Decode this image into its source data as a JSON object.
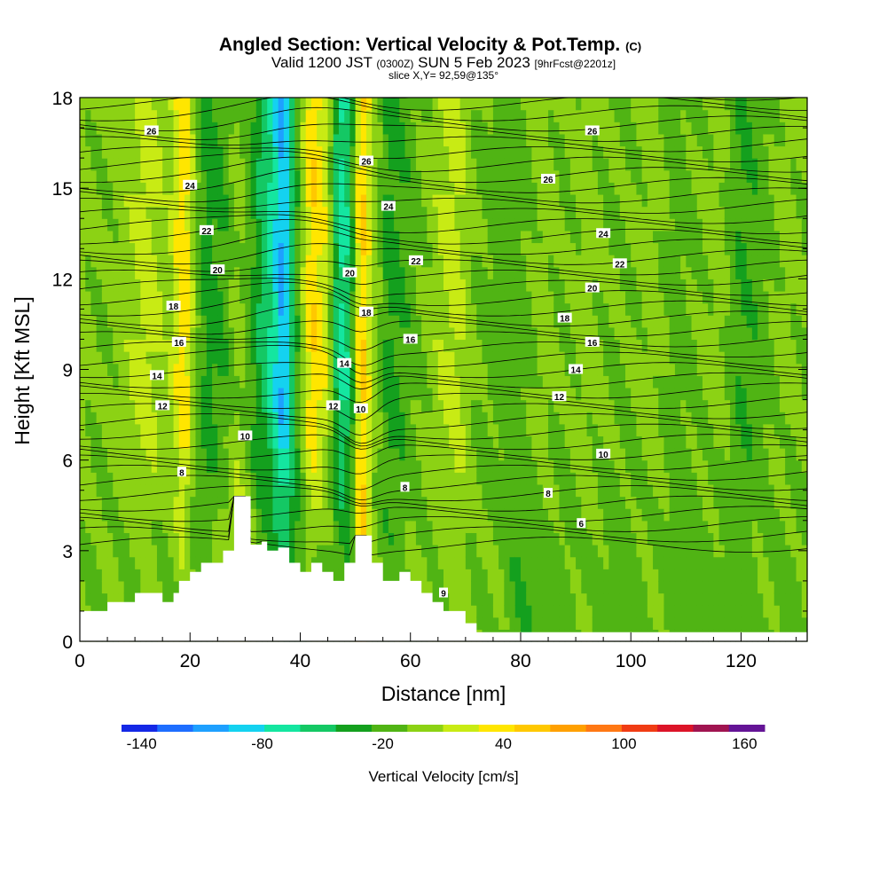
{
  "chart_data": {
    "type": "heatmap",
    "title": "Angled Section: Vertical Velocity & Pot.Temp.",
    "title_mark": "(C)",
    "subtitle": {
      "valid": "Valid 1200 JST",
      "utc": "(0300Z)",
      "date": "SUN 5 Feb 2023",
      "forecast": "[9hrFcst@2201z]"
    },
    "slice": "slice X,Y= 92,59@135°",
    "xlabel": "Distance [nm]",
    "ylabel": "Height [Kft MSL]",
    "xlim": [
      0,
      132
    ],
    "ylim": [
      0,
      18
    ],
    "x_ticks": [
      0,
      20,
      40,
      60,
      80,
      100,
      120
    ],
    "y_ticks": [
      0,
      3,
      6,
      9,
      12,
      15,
      18
    ],
    "colorbar": {
      "label": "Vertical Velocity [cm/s]",
      "min": -150,
      "max": 170,
      "step": 20,
      "tick_values": [
        -140,
        -80,
        -20,
        40,
        100,
        160
      ],
      "tick_labels": [
        "-140",
        "-80",
        "-20",
        "40",
        "100",
        "160"
      ],
      "colors": [
        "#1428e6",
        "#1e6eff",
        "#1ea0ff",
        "#14d2f0",
        "#14e6a0",
        "#14c864",
        "#14a01e",
        "#50b414",
        "#8cd214",
        "#c8eb14",
        "#ffe600",
        "#ffc800",
        "#ffa000",
        "#ff7814",
        "#f03c14",
        "#dc1428",
        "#a01450",
        "#641496"
      ]
    },
    "terrain": [
      [
        0,
        1
      ],
      [
        5,
        1
      ],
      [
        5,
        1.3
      ],
      [
        10,
        1.3
      ],
      [
        10,
        1.6
      ],
      [
        15,
        1.6
      ],
      [
        15,
        1.3
      ],
      [
        17,
        1.3
      ],
      [
        17,
        1.6
      ],
      [
        18,
        1.6
      ],
      [
        18,
        2
      ],
      [
        20,
        2
      ],
      [
        20,
        2.3
      ],
      [
        22,
        2.3
      ],
      [
        22,
        2.6
      ],
      [
        26,
        2.6
      ],
      [
        26,
        3
      ],
      [
        28,
        3
      ],
      [
        28,
        4.8
      ],
      [
        31,
        4.8
      ],
      [
        31,
        3.2
      ],
      [
        33,
        3.2
      ],
      [
        33,
        3.3
      ],
      [
        34,
        3.3
      ],
      [
        34,
        3
      ],
      [
        36,
        3
      ],
      [
        36,
        3.1
      ],
      [
        38,
        3.1
      ],
      [
        38,
        2.6
      ],
      [
        40,
        2.6
      ],
      [
        40,
        2.3
      ],
      [
        42,
        2.3
      ],
      [
        42,
        2.6
      ],
      [
        44,
        2.6
      ],
      [
        44,
        2.3
      ],
      [
        46,
        2.3
      ],
      [
        46,
        2
      ],
      [
        48,
        2
      ],
      [
        48,
        2.6
      ],
      [
        50,
        2.6
      ],
      [
        50,
        3.5
      ],
      [
        53,
        3.5
      ],
      [
        53,
        2.6
      ],
      [
        55,
        2.6
      ],
      [
        55,
        2
      ],
      [
        58,
        2
      ],
      [
        58,
        2.3
      ],
      [
        60,
        2.3
      ],
      [
        60,
        2
      ],
      [
        62,
        2
      ],
      [
        62,
        1.6
      ],
      [
        64,
        1.6
      ],
      [
        64,
        1.3
      ],
      [
        66,
        1.3
      ],
      [
        66,
        1
      ],
      [
        70,
        1
      ],
      [
        70,
        0.6
      ],
      [
        72,
        0.6
      ],
      [
        72,
        0.3
      ],
      [
        132,
        0.3
      ]
    ],
    "columns": [
      {
        "x": 0,
        "base": 20,
        "low": 10
      },
      {
        "x": 4,
        "base": 10,
        "low": 10
      },
      {
        "x": 8,
        "base": 20,
        "low": 10
      },
      {
        "x": 12,
        "base": 40,
        "low": 10
      },
      {
        "x": 16,
        "base": 20,
        "low": 10
      },
      {
        "x": 19,
        "base": 70,
        "low": 20
      },
      {
        "x": 21,
        "base": 10,
        "low": 0
      },
      {
        "x": 23,
        "base": -20,
        "low": 0
      },
      {
        "x": 26,
        "base": -10,
        "low": 30
      },
      {
        "x": 29,
        "base": 20,
        "low": 40
      },
      {
        "x": 32,
        "base": -20,
        "low": 10
      },
      {
        "x": 35,
        "base": -60,
        "low": 0
      },
      {
        "x": 37,
        "base": -100,
        "low": -20
      },
      {
        "x": 39,
        "base": -20,
        "low": -20
      },
      {
        "x": 42,
        "base": 70,
        "low": 10
      },
      {
        "x": 45,
        "base": 40,
        "low": 0
      },
      {
        "x": 47,
        "base": -60,
        "low": 0
      },
      {
        "x": 49,
        "base": -40,
        "low": -10
      },
      {
        "x": 51,
        "base": 80,
        "low": 90
      },
      {
        "x": 53,
        "base": 30,
        "low": 10
      },
      {
        "x": 56,
        "base": -20,
        "low": 0
      },
      {
        "x": 60,
        "base": 0,
        "low": 10
      },
      {
        "x": 64,
        "base": 20,
        "low": 10
      },
      {
        "x": 68,
        "base": 40,
        "low": 20
      },
      {
        "x": 72,
        "base": 10,
        "low": 10
      },
      {
        "x": 76,
        "base": 0,
        "low": 10
      },
      {
        "x": 80,
        "base": 0,
        "low": -10
      },
      {
        "x": 84,
        "base": 20,
        "low": 0
      },
      {
        "x": 88,
        "base": 10,
        "low": 0
      },
      {
        "x": 92,
        "base": 20,
        "low": 10
      },
      {
        "x": 96,
        "base": 10,
        "low": 0
      },
      {
        "x": 100,
        "base": 10,
        "low": 0
      },
      {
        "x": 104,
        "base": 20,
        "low": 10
      },
      {
        "x": 108,
        "base": 0,
        "low": 0
      },
      {
        "x": 112,
        "base": 10,
        "low": 0
      },
      {
        "x": 116,
        "base": 20,
        "low": 0
      },
      {
        "x": 120,
        "base": -10,
        "low": 0
      },
      {
        "x": 124,
        "base": 0,
        "low": 10
      },
      {
        "x": 128,
        "base": 20,
        "low": 0
      },
      {
        "x": 132,
        "base": 10,
        "low": 10
      }
    ],
    "theta_contours": {
      "levels": [
        6,
        8,
        10,
        12,
        14,
        16,
        18,
        20,
        22,
        24,
        26
      ],
      "labels": [
        {
          "text": "26",
          "x": 13,
          "y": 16.9
        },
        {
          "text": "24",
          "x": 20,
          "y": 15.1
        },
        {
          "text": "22",
          "x": 23,
          "y": 13.6
        },
        {
          "text": "20",
          "x": 25,
          "y": 12.3
        },
        {
          "text": "18",
          "x": 17,
          "y": 11.1
        },
        {
          "text": "16",
          "x": 18,
          "y": 9.9
        },
        {
          "text": "14",
          "x": 14,
          "y": 8.8
        },
        {
          "text": "12",
          "x": 15,
          "y": 7.8
        },
        {
          "text": "10",
          "x": 30,
          "y": 6.8
        },
        {
          "text": "8",
          "x": 18.5,
          "y": 5.6
        },
        {
          "text": "26",
          "x": 52,
          "y": 15.9
        },
        {
          "text": "24",
          "x": 56,
          "y": 14.4
        },
        {
          "text": "22",
          "x": 61,
          "y": 12.6
        },
        {
          "text": "20",
          "x": 49,
          "y": 12.2
        },
        {
          "text": "18",
          "x": 52,
          "y": 10.9
        },
        {
          "text": "16",
          "x": 60,
          "y": 10.0
        },
        {
          "text": "14",
          "x": 48,
          "y": 9.2
        },
        {
          "text": "12",
          "x": 46,
          "y": 7.8
        },
        {
          "text": "10",
          "x": 51,
          "y": 7.7
        },
        {
          "text": "8",
          "x": 59,
          "y": 5.1
        },
        {
          "text": "26",
          "x": 93,
          "y": 16.9
        },
        {
          "text": "26",
          "x": 85,
          "y": 15.3
        },
        {
          "text": "24",
          "x": 95,
          "y": 13.5
        },
        {
          "text": "22",
          "x": 98,
          "y": 12.5
        },
        {
          "text": "20",
          "x": 93,
          "y": 11.7
        },
        {
          "text": "18",
          "x": 88,
          "y": 10.7
        },
        {
          "text": "16",
          "x": 93,
          "y": 9.9
        },
        {
          "text": "14",
          "x": 90,
          "y": 9.0
        },
        {
          "text": "12",
          "x": 87,
          "y": 8.1
        },
        {
          "text": "10",
          "x": 95,
          "y": 6.2
        },
        {
          "text": "8",
          "x": 85,
          "y": 4.9
        },
        {
          "text": "6",
          "x": 91,
          "y": 3.9
        },
        {
          "text": "9",
          "x": 66,
          "y": 1.6
        }
      ]
    }
  }
}
